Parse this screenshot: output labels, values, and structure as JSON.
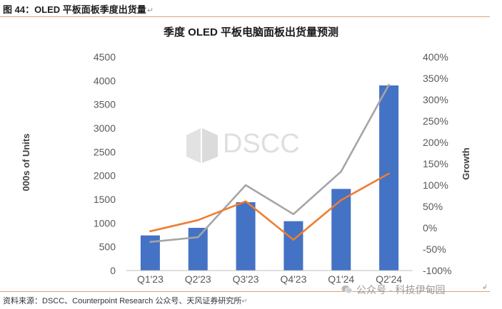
{
  "figure_caption": "图 44：OLED 平板面板季度出货量",
  "source_text": "资料来源：DSCC、Counterpoint Research 公众号、天风证券研究所",
  "watermark_text": "公众号 · 科技伊甸园",
  "logo_text": "DSCC",
  "colors": {
    "bars": "#4472c4",
    "line_orange": "#ed7d31",
    "line_gray": "#a5a5a5",
    "rule": "#d9a27a"
  },
  "chart_data": {
    "type": "bar",
    "title": "季度 OLED 平板电脑面板出货量预测",
    "ylabel": "000s of Units",
    "y2label": "Growth",
    "categories": [
      "Q1'23",
      "Q2'23",
      "Q3'23",
      "Q4'23",
      "Q1'24",
      "Q2'24"
    ],
    "ylim": [
      0,
      4500
    ],
    "yticks": [
      0,
      500,
      1000,
      1500,
      2000,
      2500,
      3000,
      3500,
      4000,
      4500
    ],
    "y2lim": [
      -100,
      400
    ],
    "y2ticks": [
      "-100%",
      "-50%",
      "0%",
      "50%",
      "100%",
      "150%",
      "200%",
      "250%",
      "300%",
      "350%",
      "400%"
    ],
    "series": [
      {
        "axis": "left",
        "type": "bar",
        "color": "#4472c4",
        "values": [
          740,
          900,
          1440,
          1040,
          1720,
          3900
        ]
      },
      {
        "axis": "right",
        "type": "line",
        "color": "#ed7d31",
        "values": [
          -8,
          18,
          62,
          -28,
          65,
          127
        ]
      },
      {
        "axis": "right",
        "type": "line",
        "color": "#a5a5a5",
        "values": [
          -33,
          -22,
          100,
          32,
          132,
          335
        ]
      }
    ],
    "grid": false,
    "legend": "none"
  }
}
